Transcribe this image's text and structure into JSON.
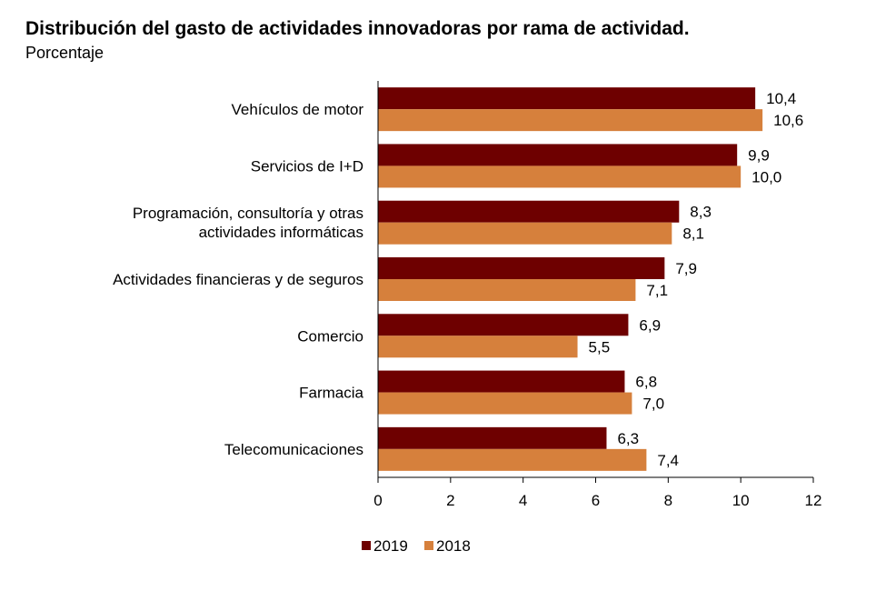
{
  "title": "Distribución del gasto de actividades innovadoras por rama de actividad.",
  "subtitle": "Porcentaje",
  "chart_data": {
    "type": "bar",
    "orientation": "horizontal",
    "title": "Distribución del gasto de actividades innovadoras por rama de actividad.",
    "subtitle": "Porcentaje",
    "categories": [
      [
        "Vehículos de motor"
      ],
      [
        "Servicios de I+D"
      ],
      [
        "Programación, consultoría y otras",
        "actividades informáticas"
      ],
      [
        "Actividades financieras y de seguros"
      ],
      [
        "Comercio"
      ],
      [
        "Farmacia"
      ],
      [
        "Telecomunicaciones"
      ]
    ],
    "series": [
      {
        "name": "2019",
        "color": "#6e0000",
        "values": [
          10.4,
          9.9,
          8.3,
          7.9,
          6.9,
          6.8,
          6.3
        ],
        "labels": [
          "10,4",
          "9,9",
          "8,3",
          "7,9",
          "6,9",
          "6,8",
          "6,3"
        ]
      },
      {
        "name": "2018",
        "color": "#d6803c",
        "values": [
          10.6,
          10.0,
          8.1,
          7.1,
          5.5,
          7.0,
          7.4
        ],
        "labels": [
          "10,6",
          "10,0",
          "8,1",
          "7,1",
          "5,5",
          "7,0",
          "7,4"
        ]
      }
    ],
    "xlim": [
      0,
      12
    ],
    "xticks": [
      0,
      2,
      4,
      6,
      8,
      10,
      12
    ],
    "grid": false,
    "legend": "bottom-center"
  }
}
